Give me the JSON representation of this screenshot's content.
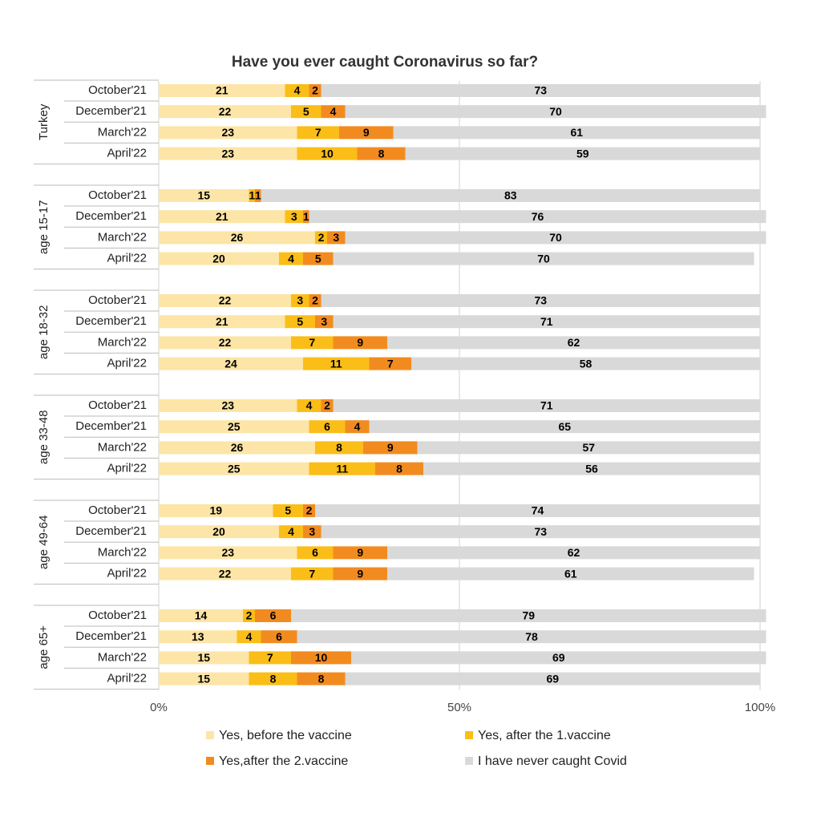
{
  "chart_data": {
    "type": "bar",
    "orientation": "horizontal",
    "stacked": true,
    "title": "Have you ever caught Coronavirus so far?",
    "groups": [
      "Turkey",
      "age 15-17",
      "age 18-32",
      "age 33-48",
      "age 49-64",
      "age 65+"
    ],
    "categories": [
      "October'21",
      "December'21",
      "March'22",
      "April'22",
      "October'21",
      "December'21",
      "March'22",
      "April'22",
      "October'21",
      "December'21",
      "March'22",
      "April'22",
      "October'21",
      "December'21",
      "March'22",
      "April'22",
      "October'21",
      "December'21",
      "March'22",
      "April'22",
      "October'21",
      "December'21",
      "March'22",
      "April'22"
    ],
    "series": [
      {
        "name": "Yes, before the vaccine",
        "color": "#fce5a6",
        "values": [
          21,
          22,
          23,
          23,
          15,
          21,
          26,
          20,
          22,
          21,
          22,
          24,
          23,
          25,
          26,
          25,
          19,
          20,
          23,
          22,
          14,
          13,
          15,
          15
        ]
      },
      {
        "name": "Yes, after the 1.vaccine",
        "color": "#fbbd17",
        "values": [
          4,
          5,
          7,
          10,
          1,
          3,
          2,
          4,
          3,
          5,
          7,
          11,
          4,
          6,
          8,
          11,
          5,
          4,
          6,
          7,
          2,
          4,
          7,
          8
        ]
      },
      {
        "name": "Yes,after the 2.vaccine",
        "color": "#f28b1f",
        "values": [
          2,
          4,
          9,
          8,
          1,
          1,
          3,
          5,
          2,
          3,
          9,
          7,
          2,
          4,
          9,
          8,
          2,
          3,
          9,
          9,
          6,
          6,
          10,
          8
        ]
      },
      {
        "name": "I have never caught Covid",
        "color": "#d9d9d9",
        "values": [
          73,
          70,
          61,
          59,
          83,
          76,
          70,
          70,
          73,
          71,
          62,
          58,
          71,
          65,
          57,
          56,
          74,
          73,
          62,
          61,
          79,
          78,
          69,
          69
        ]
      }
    ],
    "xlim": [
      0,
      100
    ],
    "xticks": [
      {
        "value": 0,
        "label": "0%"
      },
      {
        "value": 50,
        "label": "50%"
      },
      {
        "value": 100,
        "label": "100%"
      }
    ],
    "grid": true
  }
}
